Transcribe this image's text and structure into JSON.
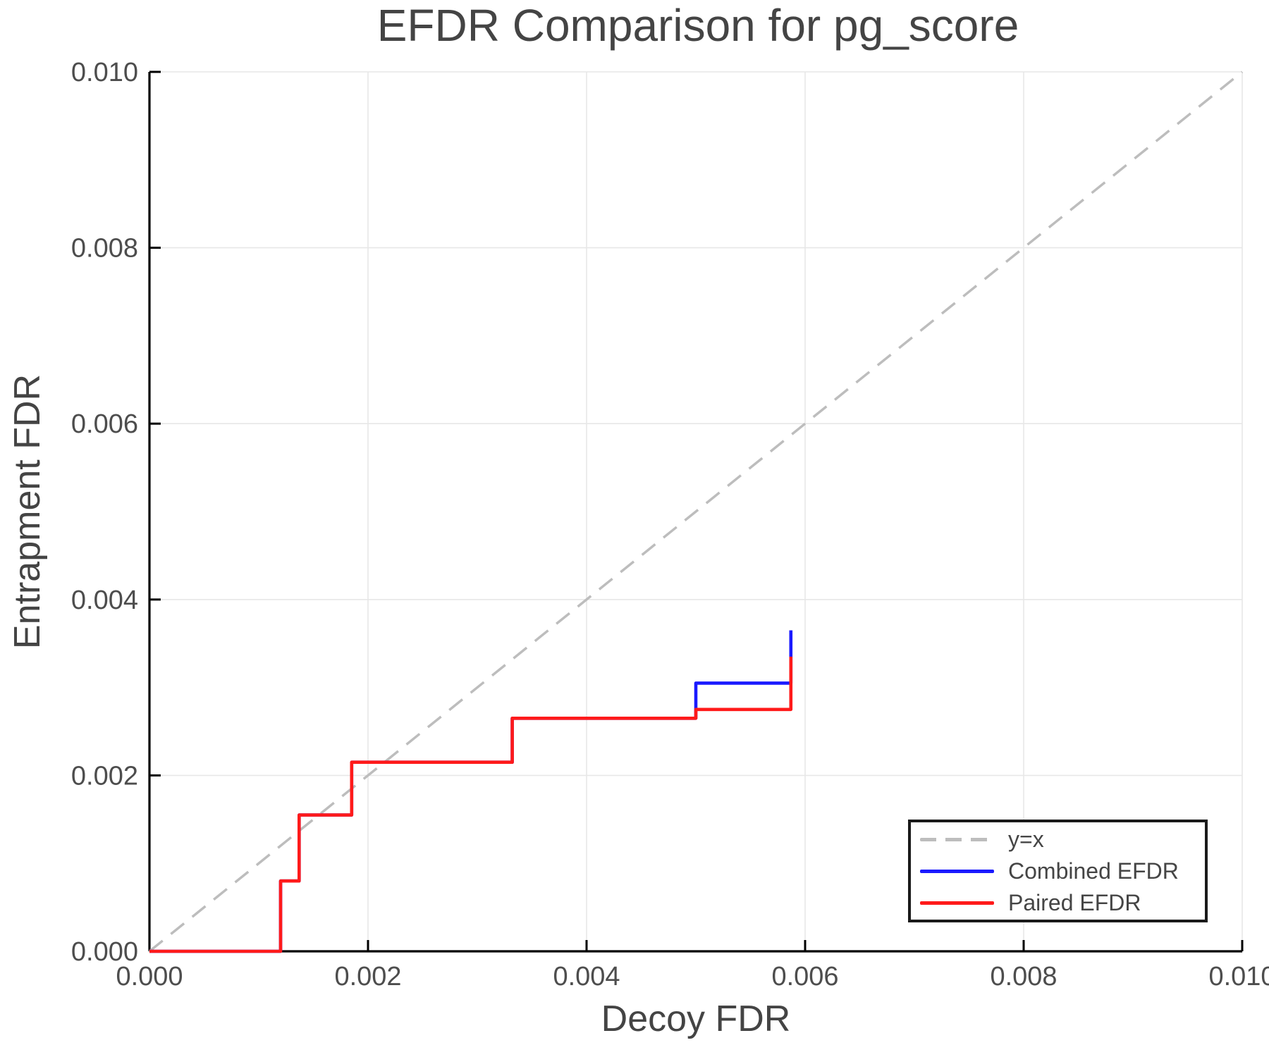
{
  "chart_data": {
    "type": "line",
    "title": "EFDR Comparison for pg_score",
    "xlabel": "Decoy FDR",
    "ylabel": "Entrapment FDR",
    "xlim": [
      0.0,
      0.01
    ],
    "ylim": [
      0.0,
      0.01
    ],
    "xticks": [
      0.0,
      0.002,
      0.004,
      0.006,
      0.008,
      0.01
    ],
    "yticks": [
      0.0,
      0.002,
      0.004,
      0.006,
      0.008,
      0.01
    ],
    "tick_decimals": 3,
    "grid": true,
    "legend_position": "lower right",
    "series": [
      {
        "id": "yx",
        "name": "y=x",
        "style": "dashed",
        "color": "#bdbdbd",
        "points": [
          [
            0.0,
            0.0
          ],
          [
            0.01,
            0.01
          ]
        ]
      },
      {
        "id": "combined",
        "name": "Combined EFDR",
        "style": "solid",
        "color": "#1a1aff",
        "points": [
          [
            0.0,
            0.0
          ],
          [
            0.0012,
            0.0
          ],
          [
            0.0012,
            0.0008
          ],
          [
            0.00137,
            0.0008
          ],
          [
            0.00137,
            0.00155
          ],
          [
            0.00185,
            0.00155
          ],
          [
            0.00185,
            0.00215
          ],
          [
            0.00332,
            0.00215
          ],
          [
            0.00332,
            0.00265
          ],
          [
            0.005,
            0.00265
          ],
          [
            0.005,
            0.00305
          ],
          [
            0.00587,
            0.00305
          ],
          [
            0.00587,
            0.00365
          ]
        ]
      },
      {
        "id": "paired",
        "name": "Paired EFDR",
        "style": "solid",
        "color": "#ff1a1a",
        "points": [
          [
            0.0,
            0.0
          ],
          [
            0.0012,
            0.0
          ],
          [
            0.0012,
            0.0008
          ],
          [
            0.00137,
            0.0008
          ],
          [
            0.00137,
            0.00155
          ],
          [
            0.00185,
            0.00155
          ],
          [
            0.00185,
            0.00215
          ],
          [
            0.00332,
            0.00215
          ],
          [
            0.00332,
            0.00265
          ],
          [
            0.005,
            0.00265
          ],
          [
            0.005,
            0.00275
          ],
          [
            0.00587,
            0.00275
          ],
          [
            0.00587,
            0.00335
          ]
        ]
      }
    ],
    "colors": {
      "background": "#ffffff",
      "grid": "#e7e7e7",
      "spine": "#000000",
      "title_text": "#444444",
      "tick_text": "#4d4d4d",
      "legend_border": "#1a1a1a",
      "legend_text": "#454545"
    }
  }
}
